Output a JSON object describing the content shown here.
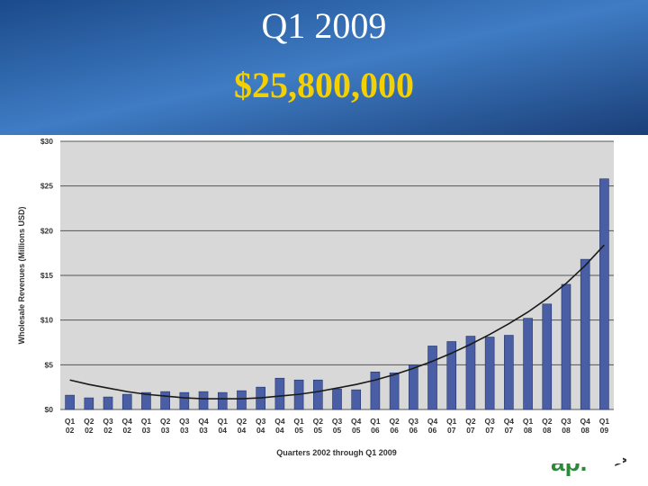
{
  "slide": {
    "title": "Q1 2009",
    "subtitle": "$25,800,000",
    "logo_text": "ap.",
    "logo_arrow": ">"
  },
  "chart_data": {
    "type": "bar",
    "y_label": "Wholesale Revenues (Millions USD)",
    "x_label": "Quarters 2002 through Q1 2009",
    "categories": [
      "Q1 02",
      "Q2 02",
      "Q3 02",
      "Q4 02",
      "Q1 03",
      "Q2 03",
      "Q3 03",
      "Q4 03",
      "Q1 04",
      "Q2 04",
      "Q3 04",
      "Q4 04",
      "Q1 05",
      "Q2 05",
      "Q3 05",
      "Q4 05",
      "Q1 06",
      "Q2 06",
      "Q3 06",
      "Q4 06",
      "Q1 07",
      "Q2 07",
      "Q3 07",
      "Q4 07",
      "Q1 08",
      "Q2 08",
      "Q3 08",
      "Q4 08",
      "Q1 09"
    ],
    "series": [
      {
        "type": "bar",
        "color": "#4a5ea6",
        "values": [
          1.6,
          1.3,
          1.4,
          1.7,
          1.9,
          2.0,
          1.9,
          2.0,
          1.9,
          2.1,
          2.5,
          3.5,
          3.3,
          3.3,
          2.3,
          2.2,
          4.2,
          4.1,
          5.0,
          7.1,
          7.6,
          8.2,
          8.1,
          8.3,
          10.2,
          11.8,
          14.0,
          16.8,
          25.8
        ]
      },
      {
        "type": "line",
        "color": "#1a1a1a",
        "values": [
          3.3,
          2.8,
          2.4,
          2.0,
          1.7,
          1.5,
          1.3,
          1.2,
          1.2,
          1.2,
          1.3,
          1.5,
          1.7,
          2.0,
          2.4,
          2.8,
          3.3,
          3.9,
          4.6,
          5.4,
          6.3,
          7.3,
          8.4,
          9.6,
          10.9,
          12.4,
          14.1,
          16.1,
          18.4
        ]
      }
    ],
    "ylim": [
      0,
      30
    ],
    "yticks": [
      {
        "value": 0,
        "label": "$0"
      },
      {
        "value": 5,
        "label": "$5"
      },
      {
        "value": 10,
        "label": "$10"
      },
      {
        "value": 15,
        "label": "$15"
      },
      {
        "value": 20,
        "label": "$20"
      },
      {
        "value": 25,
        "label": "$25"
      },
      {
        "value": 30,
        "label": "$30"
      }
    ],
    "grid": true
  }
}
